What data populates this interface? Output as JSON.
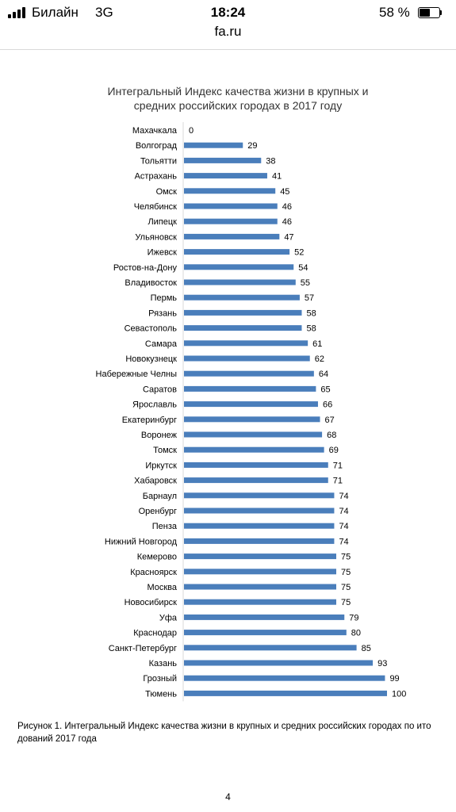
{
  "status_bar": {
    "carrier": "Билайн",
    "network": "3G",
    "time": "18:24",
    "battery_percent": "58 %",
    "battery_level": 0.58
  },
  "browser": {
    "url": "fa.ru"
  },
  "chart_data": {
    "type": "bar",
    "orientation": "horizontal",
    "title": "Интегральный Индекс качества жизни в крупных и средних российских городах в 2017 году",
    "categories": [
      "Махачкала",
      "Волгоград",
      "Тольятти",
      "Астрахань",
      "Омск",
      "Челябинск",
      "Липецк",
      "Ульяновск",
      "Ижевск",
      "Ростов-на-Дону",
      "Владивосток",
      "Пермь",
      "Рязань",
      "Севастополь",
      "Самара",
      "Новокузнецк",
      "Набережные Челны",
      "Саратов",
      "Ярославль",
      "Екатеринбург",
      "Воронеж",
      "Томск",
      "Иркутск",
      "Хабаровск",
      "Барнаул",
      "Оренбург",
      "Пенза",
      "Нижний Новгород",
      "Кемерово",
      "Красноярск",
      "Москва",
      "Новосибирск",
      "Уфа",
      "Краснодар",
      "Санкт-Петербург",
      "Казань",
      "Грозный",
      "Тюмень"
    ],
    "values": [
      0,
      29,
      38,
      41,
      45,
      46,
      46,
      47,
      52,
      54,
      55,
      57,
      58,
      58,
      61,
      62,
      64,
      65,
      66,
      67,
      68,
      69,
      71,
      71,
      74,
      74,
      74,
      74,
      75,
      75,
      75,
      75,
      79,
      80,
      85,
      93,
      99,
      100
    ],
    "xlim": [
      0,
      100
    ],
    "bar_color": "#4a7ebb",
    "data_labels": true,
    "grid": false,
    "legend": "none"
  },
  "caption": "Рисунок 1. Интегральный Индекс качества жизни в крупных и средних российских городах по ито\nдований 2017 года",
  "page_number": "4"
}
